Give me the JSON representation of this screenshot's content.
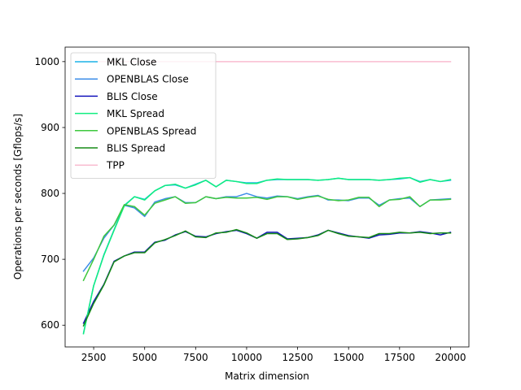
{
  "chart_data": {
    "type": "line",
    "xlabel": "Matrix dimension",
    "ylabel": "Operations per seconds [Gflops/s]",
    "xlim": [
      1100,
      20900
    ],
    "ylim": [
      567,
      1022
    ],
    "xticks": [
      2500,
      5000,
      7500,
      10000,
      12500,
      15000,
      17500,
      20000
    ],
    "yticks": [
      600,
      700,
      800,
      900,
      1000
    ],
    "xtick_labels": [
      "2500",
      "5000",
      "7500",
      "10000",
      "12500",
      "15000",
      "17500",
      "20000"
    ],
    "ytick_labels": [
      "600",
      "700",
      "800",
      "900",
      "1000"
    ],
    "grid": false,
    "legend_position": "top-left",
    "x": [
      2000,
      2500,
      3000,
      3500,
      4000,
      4500,
      5000,
      5500,
      6000,
      6500,
      7000,
      7500,
      8000,
      8500,
      9000,
      9500,
      10000,
      10500,
      11000,
      11500,
      12000,
      12500,
      13000,
      13500,
      14000,
      14500,
      15000,
      15500,
      16000,
      16500,
      17000,
      17500,
      18000,
      18500,
      19000,
      19500,
      20000
    ],
    "series": [
      {
        "name": "MKL Close",
        "color": "#1cb4e8",
        "values": [
          588,
          660,
          707,
          745,
          782,
          795,
          791,
          804,
          812,
          813,
          808,
          814,
          820,
          810,
          820,
          818,
          816,
          816,
          820,
          821,
          821,
          821,
          821,
          820,
          821,
          823,
          821,
          821,
          821,
          820,
          821,
          822,
          824,
          818,
          821,
          818,
          820
        ]
      },
      {
        "name": "OPENBLAS Close",
        "color": "#3d8de8",
        "values": [
          682,
          702,
          732,
          752,
          782,
          778,
          765,
          787,
          792,
          795,
          786,
          786,
          795,
          792,
          795,
          795,
          800,
          795,
          793,
          796,
          795,
          792,
          795,
          797,
          790,
          790,
          789,
          793,
          793,
          782,
          790,
          792,
          793,
          780,
          790,
          791,
          792
        ]
      },
      {
        "name": "BLIS Close",
        "color": "#1414bc",
        "values": [
          603,
          636,
          662,
          697,
          705,
          711,
          711,
          726,
          729,
          737,
          742,
          735,
          734,
          739,
          742,
          744,
          739,
          732,
          741,
          741,
          731,
          732,
          733,
          737,
          744,
          740,
          736,
          734,
          732,
          737,
          738,
          740,
          740,
          742,
          740,
          737,
          741
        ]
      },
      {
        "name": "MKL Spread",
        "color": "#10ee80",
        "values": [
          587,
          660,
          706,
          744,
          781,
          795,
          790,
          804,
          812,
          814,
          808,
          813,
          820,
          810,
          820,
          818,
          815,
          815,
          820,
          822,
          821,
          821,
          821,
          820,
          821,
          823,
          821,
          821,
          821,
          820,
          821,
          823,
          824,
          817,
          821,
          818,
          821
        ]
      },
      {
        "name": "OPENBLAS Spread",
        "color": "#3ec83e",
        "values": [
          668,
          700,
          735,
          752,
          783,
          780,
          767,
          785,
          790,
          795,
          785,
          786,
          795,
          792,
          794,
          793,
          793,
          794,
          791,
          795,
          795,
          791,
          794,
          796,
          791,
          789,
          790,
          794,
          794,
          780,
          790,
          791,
          795,
          780,
          790,
          790,
          791
        ]
      },
      {
        "name": "BLIS Spread",
        "color": "#168c16",
        "values": [
          599,
          633,
          661,
          696,
          705,
          710,
          710,
          725,
          730,
          736,
          743,
          734,
          733,
          740,
          741,
          745,
          740,
          732,
          739,
          739,
          730,
          731,
          733,
          736,
          744,
          739,
          735,
          734,
          733,
          739,
          739,
          741,
          740,
          741,
          739,
          740,
          740
        ]
      },
      {
        "name": "TPP",
        "color": "#f9bcd0",
        "values": [
          1000,
          1000,
          1000,
          1000,
          1000,
          1000,
          1000,
          1000,
          1000,
          1000,
          1000,
          1000,
          1000,
          1000,
          1000,
          1000,
          1000,
          1000,
          1000,
          1000,
          1000,
          1000,
          1000,
          1000,
          1000,
          1000,
          1000,
          1000,
          1000,
          1000,
          1000,
          1000,
          1000,
          1000,
          1000,
          1000,
          1000
        ]
      }
    ]
  }
}
